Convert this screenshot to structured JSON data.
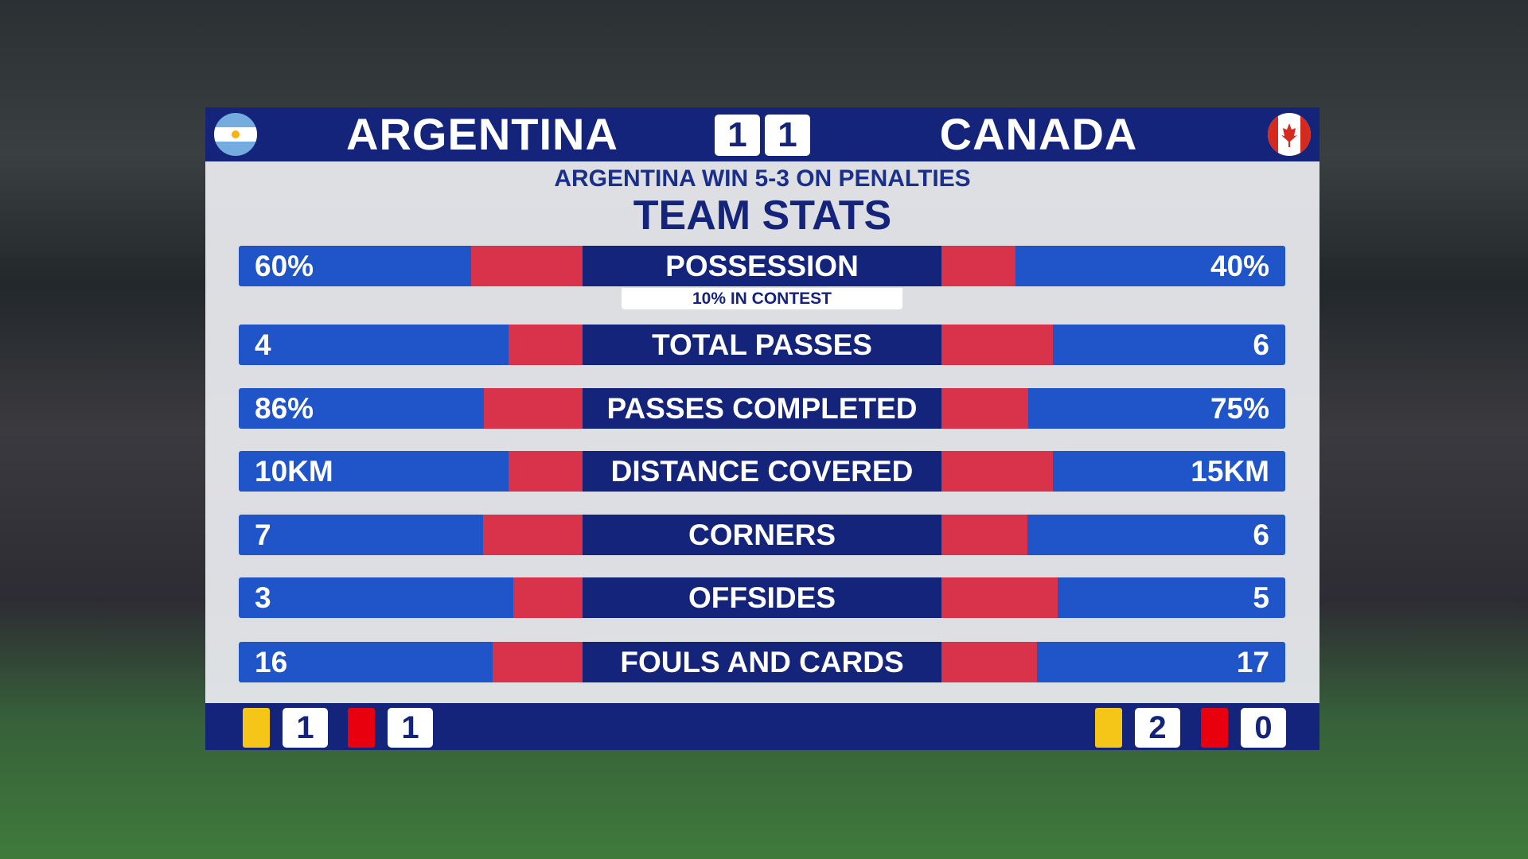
{
  "header": {
    "home_team": "ARGENTINA",
    "away_team": "CANADA",
    "home_score": 1,
    "away_score": 1
  },
  "subtitle": "ARGENTINA WIN 5-3 ON PENALTIES",
  "title": "TEAM STATS",
  "stats": [
    {
      "label": "POSSESSION",
      "left": {
        "value": 60,
        "label": "60%"
      },
      "right": {
        "value": 40,
        "label": "40%"
      },
      "note": "10% IN CONTEST"
    },
    {
      "label": "TOTAL PASSES",
      "left": 4,
      "right": 6
    },
    {
      "label": "PASSES COMPLETED",
      "left": {
        "value": 86,
        "label": "86%"
      },
      "right": {
        "value": 75,
        "label": "75%"
      }
    },
    {
      "label": "DISTANCE COVERED",
      "left": {
        "value": 10,
        "label": "10KM"
      },
      "right": {
        "value": 15,
        "label": "15KM"
      }
    },
    {
      "label": "CORNERS",
      "left": 7,
      "right": 6
    },
    {
      "label": "OFFSIDES",
      "left": 3,
      "right": 5
    },
    {
      "label": "FOULS AND CARDS",
      "left": 16,
      "right": 17
    }
  ],
  "cards": {
    "home": {
      "yellow": 1,
      "red": 1
    },
    "away": {
      "yellow": 2,
      "red": 0
    }
  }
}
